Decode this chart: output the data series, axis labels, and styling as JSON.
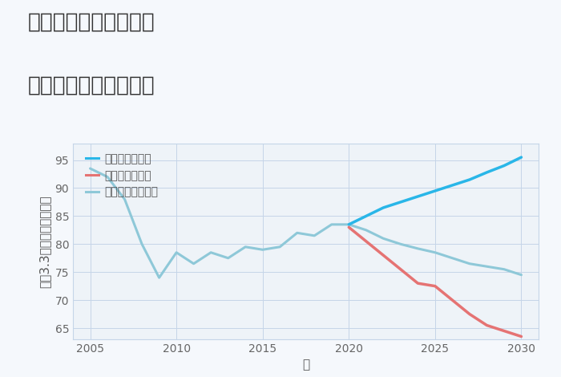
{
  "title_line1": "埼玉県熊谷市上須戸の",
  "title_line2": "中古戸建ての価格推移",
  "xlabel": "年",
  "ylabel": "坪（3.3㎡）単価（万円）",
  "ylim": [
    63,
    98
  ],
  "xlim": [
    2004,
    2031
  ],
  "yticks": [
    65,
    70,
    75,
    80,
    85,
    90,
    95
  ],
  "xticks": [
    2005,
    2010,
    2015,
    2020,
    2025,
    2030
  ],
  "background_color": "#f5f8fc",
  "plot_bg_color": "#eef3f8",
  "grid_color": "#c5d5e8",
  "normal_scenario": {
    "x": [
      2005,
      2006,
      2007,
      2008,
      2009,
      2010,
      2011,
      2012,
      2013,
      2014,
      2015,
      2016,
      2017,
      2018,
      2019,
      2020,
      2021,
      2022,
      2023,
      2024,
      2025,
      2026,
      2027,
      2028,
      2029,
      2030
    ],
    "y": [
      93.5,
      92.0,
      88.0,
      80.0,
      74.0,
      78.5,
      76.5,
      78.5,
      77.5,
      79.5,
      79.0,
      79.5,
      82.0,
      81.5,
      83.5,
      83.5,
      82.5,
      81.0,
      80.0,
      79.2,
      78.5,
      77.5,
      76.5,
      76.0,
      75.5,
      74.5
    ],
    "color": "#8ec8d8",
    "label": "ノーマルシナリオ",
    "linewidth": 2.2
  },
  "good_scenario": {
    "x": [
      2020,
      2021,
      2022,
      2023,
      2024,
      2025,
      2026,
      2027,
      2028,
      2029,
      2030
    ],
    "y": [
      83.5,
      85.0,
      86.5,
      87.5,
      88.5,
      89.5,
      90.5,
      91.5,
      92.8,
      94.0,
      95.5
    ],
    "color": "#29b6e8",
    "label": "グッドシナリオ",
    "linewidth": 2.5
  },
  "bad_scenario": {
    "x": [
      2020,
      2021,
      2022,
      2023,
      2024,
      2025,
      2026,
      2027,
      2028,
      2029,
      2030
    ],
    "y": [
      83.0,
      80.5,
      78.0,
      75.5,
      73.0,
      72.5,
      70.0,
      67.5,
      65.5,
      64.5,
      63.5
    ],
    "color": "#e57373",
    "label": "バッドシナリオ",
    "linewidth": 2.5
  },
  "title_fontsize": 19,
  "axis_fontsize": 11,
  "tick_fontsize": 10,
  "legend_fontsize": 10
}
